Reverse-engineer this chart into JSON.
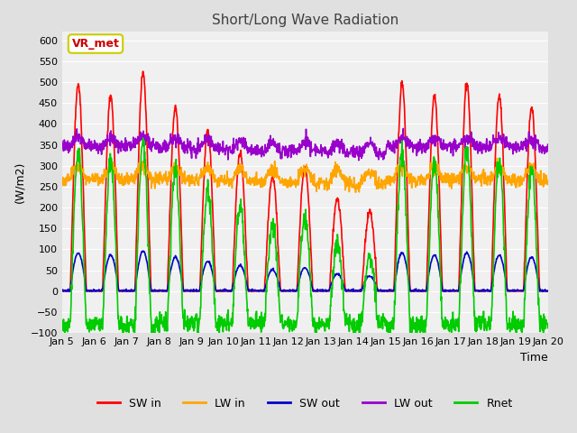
{
  "title": "Short/Long Wave Radiation",
  "xlabel": "Time",
  "ylabel": "(W/m2)",
  "ylim": [
    -100,
    620
  ],
  "yticks": [
    -100,
    -50,
    0,
    50,
    100,
    150,
    200,
    250,
    300,
    350,
    400,
    450,
    500,
    550,
    600
  ],
  "xtick_labels": [
    "Jan 5",
    "Jan 6",
    "Jan 7",
    "Jan 8",
    "Jan 9",
    "Jan 10",
    "Jan 11",
    "Jan 12",
    "Jan 13",
    "Jan 14",
    "Jan 15",
    "Jan 16",
    "Jan 17",
    "Jan 18",
    "Jan 19",
    "Jan 20"
  ],
  "legend_labels": [
    "SW in",
    "LW in",
    "SW out",
    "LW out",
    "Rnet"
  ],
  "colors": {
    "SW_in": "#ff0000",
    "LW_in": "#ffa500",
    "SW_out": "#0000cc",
    "LW_out": "#9900cc",
    "Rnet": "#00cc00"
  },
  "annotation_text": "VR_met",
  "annotation_color": "#cc0000",
  "linewidth": 1.2
}
